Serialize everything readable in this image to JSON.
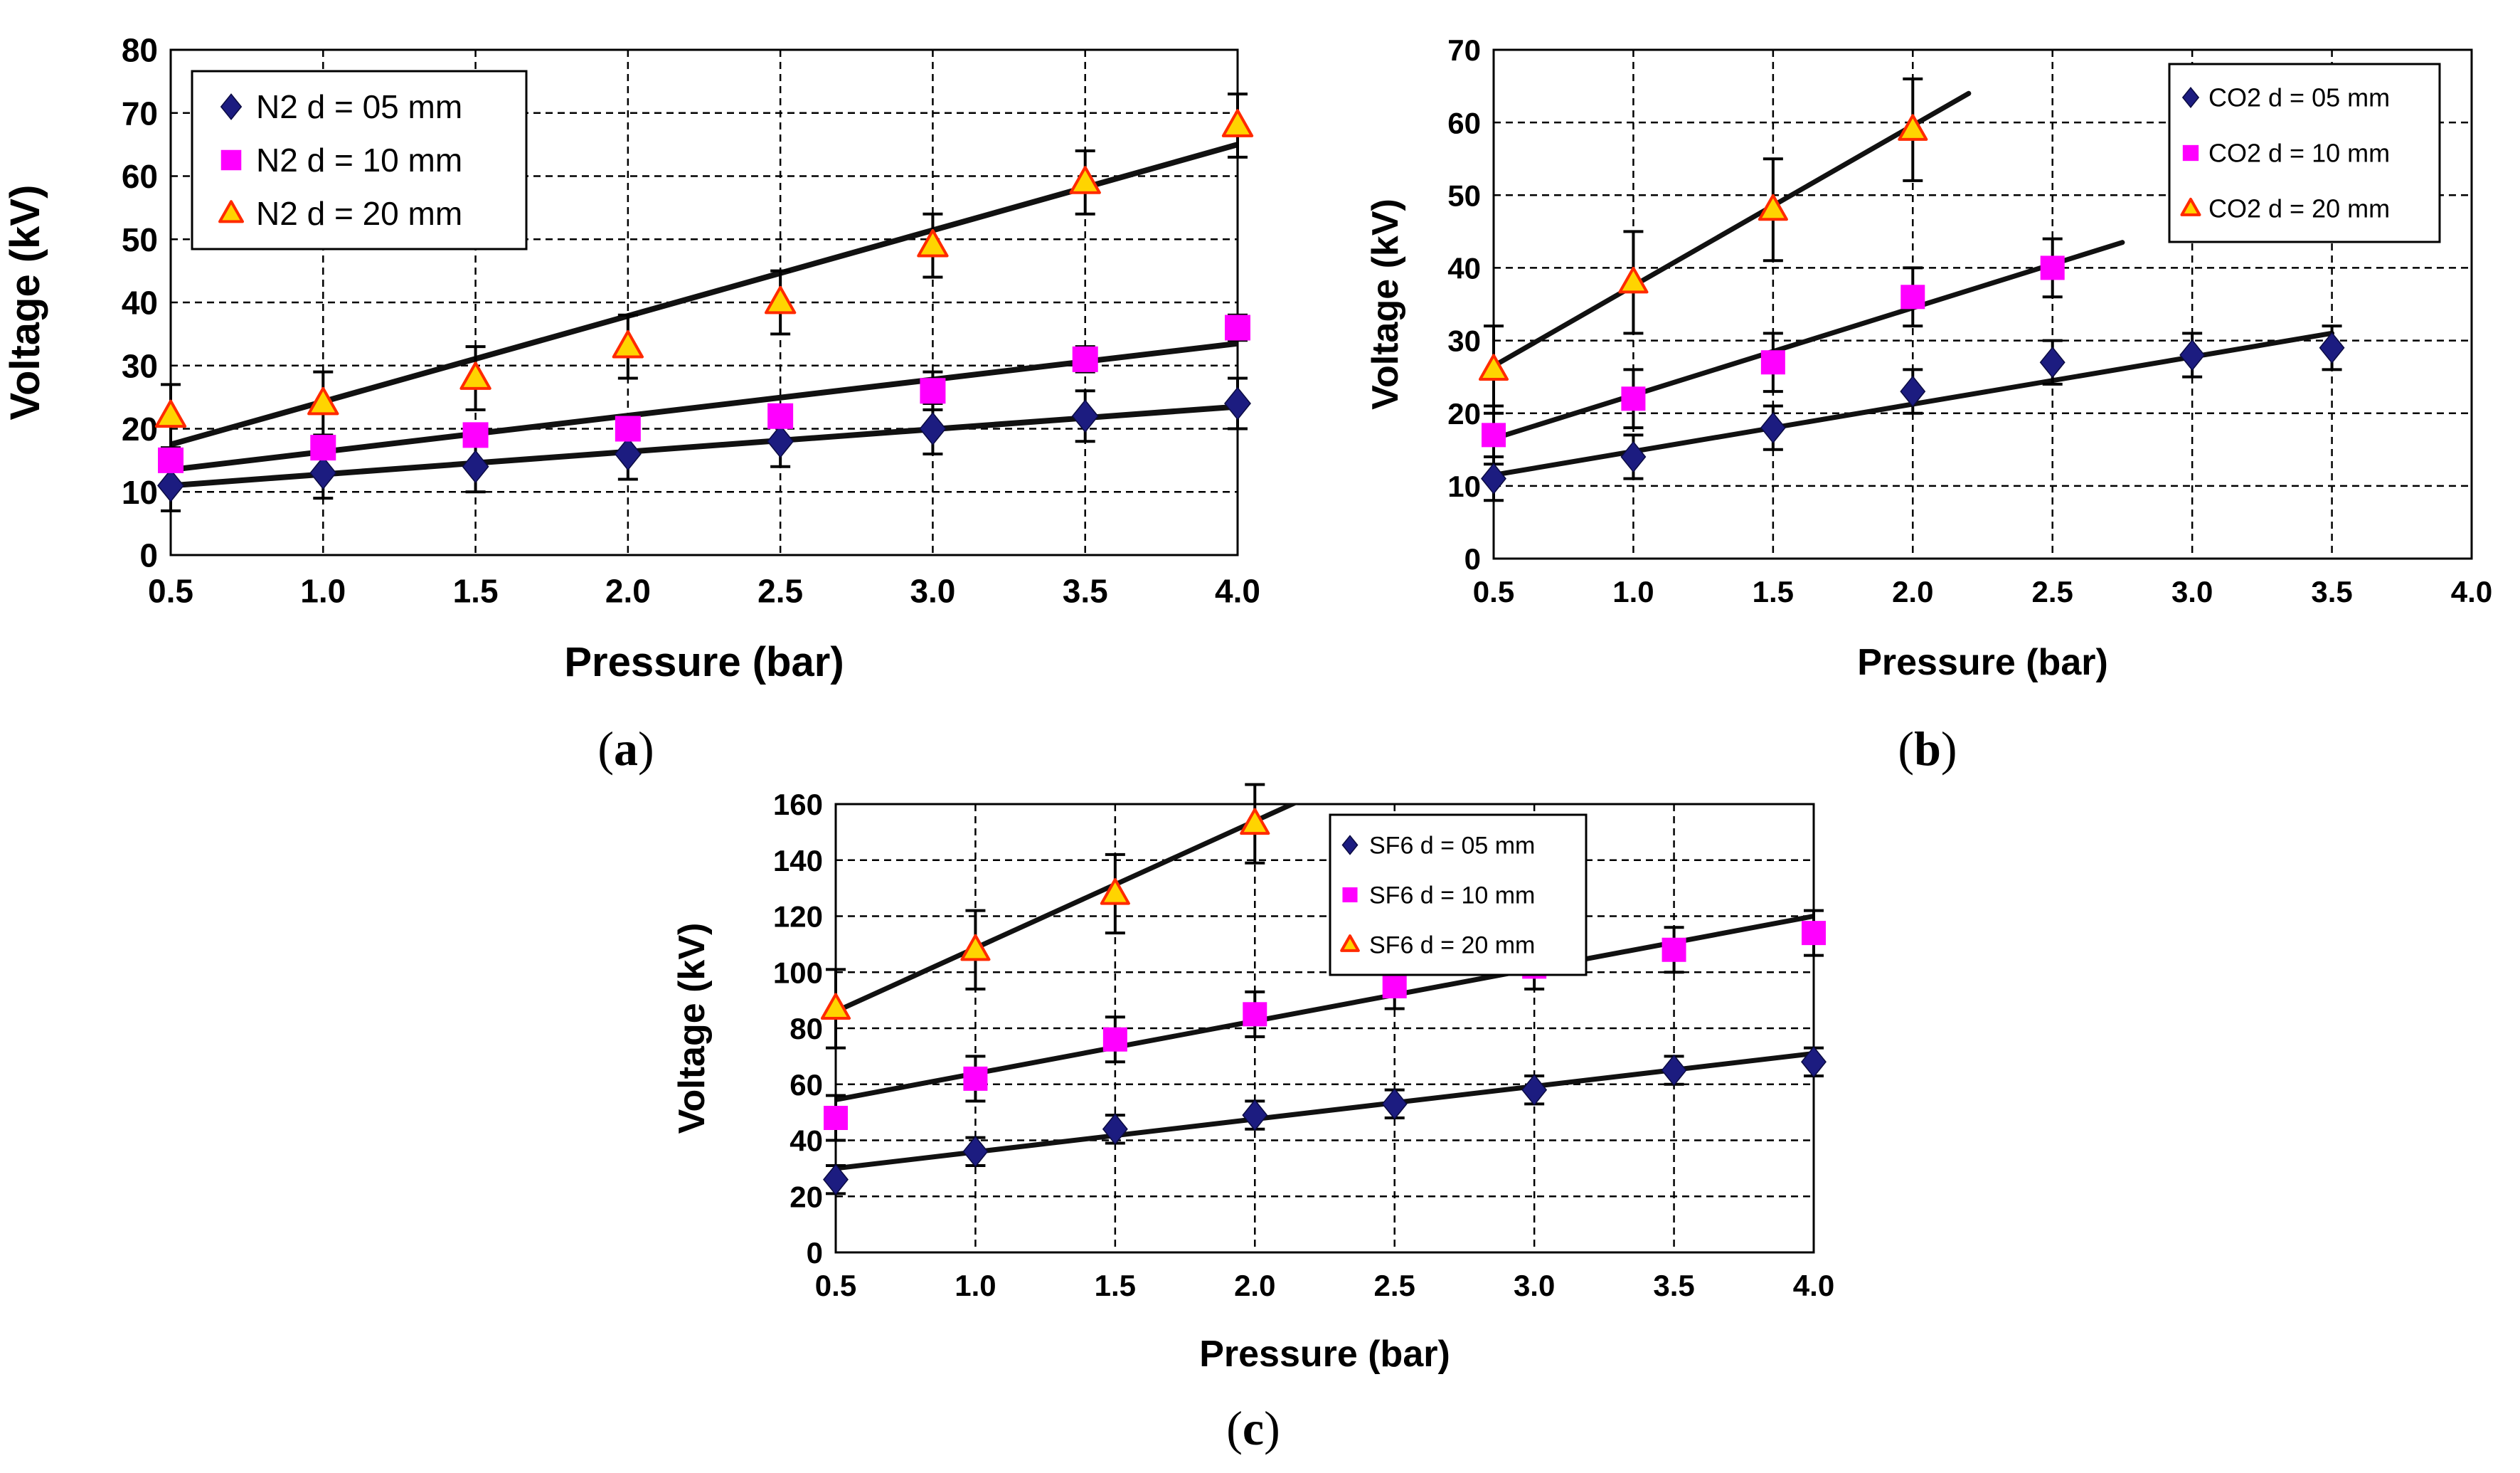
{
  "chart_data": [
    {
      "id": "a",
      "type": "scatter",
      "caption": "a",
      "xlabel": "Pressure (bar)",
      "ylabel": "Voltage (kV)",
      "xlim": [
        0.5,
        4.0
      ],
      "ylim": [
        0,
        80
      ],
      "x_ticks": [
        "0.5",
        "1.0",
        "1.5",
        "2.0",
        "2.5",
        "3.0",
        "3.5",
        "4.0"
      ],
      "y_ticks": [
        "0",
        "10",
        "20",
        "30",
        "40",
        "50",
        "60",
        "70",
        "80"
      ],
      "legend_position": "top-left",
      "grid": true,
      "x": [
        0.5,
        1.0,
        1.5,
        2.0,
        2.5,
        3.0,
        3.5,
        4.0
      ],
      "series": [
        {
          "name": "N2 d = 05 mm",
          "marker": "diamond",
          "color": "#1c1c80",
          "values": [
            11,
            13,
            14,
            16,
            18,
            20,
            22,
            24
          ],
          "errors": [
            4,
            4,
            4,
            4,
            4,
            4,
            4,
            4
          ],
          "fit": [
            [
              0.5,
              11
            ],
            [
              4.0,
              23.5
            ]
          ]
        },
        {
          "name": "N2 d = 10 mm",
          "marker": "square",
          "color": "#ff00ff",
          "values": [
            15,
            17,
            19,
            20,
            22,
            26,
            31,
            36
          ],
          "errors": [
            0,
            0,
            0,
            0,
            0,
            3,
            2,
            2
          ],
          "fit": [
            [
              0.5,
              13.5
            ],
            [
              4.0,
              33.5
            ]
          ]
        },
        {
          "name": "N2 d = 20 mm",
          "marker": "triangle",
          "color": "#ffd400",
          "stroke": "#ff2a00",
          "values": [
            22,
            24,
            28,
            33,
            40,
            49,
            59,
            68
          ],
          "errors": [
            5,
            5,
            5,
            5,
            5,
            5,
            5,
            5
          ],
          "fit": [
            [
              0.5,
              17.5
            ],
            [
              4.0,
              65
            ]
          ]
        }
      ]
    },
    {
      "id": "b",
      "type": "scatter",
      "caption": "b",
      "xlabel": "Pressure (bar)",
      "ylabel": "Voltage (kV)",
      "xlim": [
        0.5,
        4.0
      ],
      "ylim": [
        0,
        70
      ],
      "x_ticks": [
        "0.5",
        "1.0",
        "1.5",
        "2.0",
        "2.5",
        "3.0",
        "3.5",
        "4.0"
      ],
      "y_ticks": [
        "0",
        "10",
        "20",
        "30",
        "40",
        "50",
        "60",
        "70"
      ],
      "legend_position": "top-right",
      "grid": true,
      "series": [
        {
          "name": "CO2 d = 05 mm",
          "marker": "diamond",
          "color": "#1c1c80",
          "x": [
            0.5,
            1.0,
            1.5,
            2.0,
            2.5,
            3.0,
            3.5
          ],
          "values": [
            11,
            14,
            18,
            23,
            27,
            28,
            29
          ],
          "errors": [
            3,
            3,
            3,
            3,
            3,
            3,
            3
          ],
          "fit": [
            [
              0.5,
              11.5
            ],
            [
              3.5,
              31
            ]
          ]
        },
        {
          "name": "CO2 d = 10 mm",
          "marker": "square",
          "color": "#ff00ff",
          "x": [
            0.5,
            1.0,
            1.5,
            2.0,
            2.5
          ],
          "values": [
            17,
            22,
            27,
            36,
            40
          ],
          "errors": [
            4,
            4,
            4,
            4,
            4
          ],
          "fit": [
            [
              0.5,
              16.5
            ],
            [
              2.75,
              43.5
            ]
          ]
        },
        {
          "name": "CO2 d = 20 mm",
          "marker": "triangle",
          "color": "#ffd400",
          "stroke": "#ff2a00",
          "x": [
            0.5,
            1.0,
            1.5,
            2.0
          ],
          "values": [
            26,
            38,
            48,
            59
          ],
          "errors": [
            6,
            7,
            7,
            7
          ],
          "fit": [
            [
              0.5,
              26.5
            ],
            [
              2.2,
              64
            ]
          ]
        }
      ]
    },
    {
      "id": "c",
      "type": "scatter",
      "caption": "c",
      "xlabel": "Pressure (bar)",
      "ylabel": "Voltage (kV)",
      "xlim": [
        0.5,
        4.0
      ],
      "ylim": [
        0,
        160
      ],
      "x_ticks": [
        "0.5",
        "1.0",
        "1.5",
        "2.0",
        "2.5",
        "3.0",
        "3.5",
        "4.0"
      ],
      "y_ticks": [
        "0",
        "20",
        "40",
        "60",
        "80",
        "100",
        "120",
        "140",
        "160"
      ],
      "legend_position": "top-right",
      "grid": true,
      "x": [
        0.5,
        1.0,
        1.5,
        2.0,
        2.5,
        3.0,
        3.5,
        4.0
      ],
      "series": [
        {
          "name": "SF6 d = 05 mm",
          "marker": "diamond",
          "color": "#1c1c80",
          "values": [
            26,
            36,
            44,
            49,
            53,
            58,
            65,
            68
          ],
          "errors": [
            5,
            5,
            5,
            5,
            5,
            5,
            5,
            5
          ],
          "fit": [
            [
              0.5,
              30
            ],
            [
              4.0,
              71
            ]
          ]
        },
        {
          "name": "SF6 d = 10 mm",
          "marker": "square",
          "color": "#ff00ff",
          "values": [
            48,
            62,
            76,
            85,
            95,
            102,
            108,
            114
          ],
          "errors": [
            8,
            8,
            8,
            8,
            8,
            8,
            8,
            8
          ],
          "fit": [
            [
              0.5,
              54.5
            ],
            [
              4.0,
              120
            ]
          ]
        },
        {
          "name": "SF6 d = 20 mm",
          "marker": "triangle",
          "color": "#ffd400",
          "stroke": "#ff2a00",
          "x": [
            0.5,
            1.0,
            1.5,
            2.0
          ],
          "values": [
            87,
            108,
            128,
            153
          ],
          "errors": [
            14,
            14,
            14,
            14
          ],
          "fit": [
            [
              0.5,
              86
            ],
            [
              2.2,
              163
            ]
          ]
        }
      ]
    }
  ]
}
